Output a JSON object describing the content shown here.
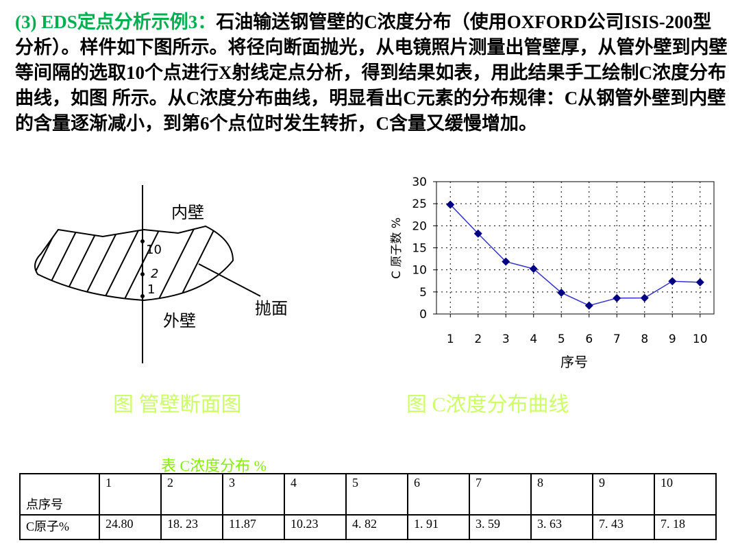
{
  "intro": {
    "heading": "(3) EDS定点分析示例3：",
    "text": "石油输送钢管壁的C浓度分布（使用OXFORD公司ISIS-200型分析）。样件如下图所示。将径向断面抛光，从电镜照片测量出管壁厚，从管外壁到内壁等间隔的选取10个点进行X射线定点分析，得到结果如表，用此结果手工绘制C浓度分布曲线，如图 所示。从C浓度分布曲线，明显看出C元素的分布规律：C从钢管外壁到内壁的含量逐渐减小，到第6个点位时发生转折，C含量又缓慢增加。"
  },
  "diagram": {
    "inner": "内壁",
    "outer": "外壁",
    "surface": "抛面",
    "point_top": "10",
    "point_mid": "2",
    "point_bottom": "1",
    "caption": "图  管壁断面图"
  },
  "chart_data": {
    "type": "line",
    "ylabel": "C 原子数 %",
    "xlabel": "序号",
    "caption": "图  C浓度分布曲线",
    "categories": [
      1,
      2,
      3,
      4,
      5,
      6,
      7,
      8,
      9,
      10
    ],
    "series": [
      {
        "name": "C原子%",
        "color": "#000080",
        "values": [
          24.8,
          18.23,
          11.87,
          10.23,
          4.82,
          1.91,
          3.59,
          3.63,
          7.43,
          7.18
        ]
      }
    ],
    "ylim": [
      0,
      30
    ],
    "yticks": [
      0,
      5,
      10,
      15,
      20,
      25,
      30
    ],
    "grid": true
  },
  "table": {
    "caption": "表    C浓度分布 %",
    "header": [
      "点序号",
      "1",
      "2",
      "3",
      "4",
      "5",
      "6",
      "7",
      "8",
      "9",
      "10"
    ],
    "rows": [
      [
        "C原子%",
        "24.80",
        "18. 23",
        "11.87",
        "10.23",
        "4. 82",
        "1. 91",
        "3. 59",
        "3. 63",
        "7. 43",
        "7. 18"
      ]
    ]
  }
}
